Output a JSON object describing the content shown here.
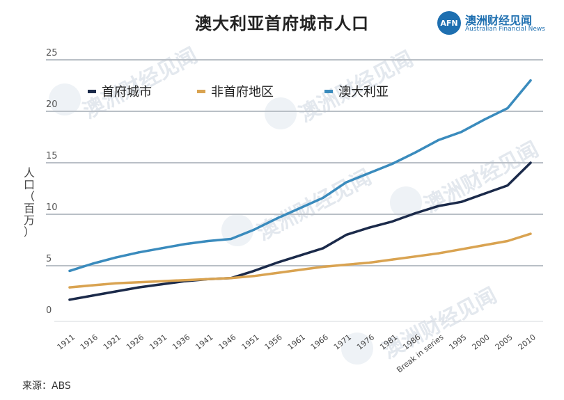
{
  "brand": {
    "logo_mark": "AFN",
    "name_cn": "澳洲财经见闻",
    "name_en": "Australian Financial News",
    "color": "#1e6fb0"
  },
  "source": "来源：ABS",
  "y_axis_label_chars": [
    "人",
    "口",
    "（",
    "百",
    "万",
    "）"
  ],
  "chart_data": {
    "type": "line",
    "title": "澳大利亚首府城市人口",
    "ylabel": "人口（百万）",
    "xlabel": "",
    "ylim": [
      0,
      25
    ],
    "yticks": [
      "0",
      "5",
      "10",
      "15",
      "20",
      "25"
    ],
    "categories": [
      "1911",
      "1916",
      "1921",
      "1926",
      "1931",
      "1936",
      "1941",
      "1946",
      "1951",
      "1956",
      "1961",
      "1966",
      "1971",
      "1976",
      "1981",
      "1986",
      "Break in series",
      "1995",
      "2000",
      "2005",
      "2010"
    ],
    "legend_position": "top-left",
    "series": [
      {
        "name": "首府城市",
        "color": "#1b2a4a",
        "values": [
          1.7,
          2.1,
          2.5,
          2.9,
          3.2,
          3.5,
          3.7,
          3.8,
          4.5,
          5.3,
          6.0,
          6.7,
          8.0,
          8.7,
          9.3,
          10.1,
          10.8,
          11.2,
          12.0,
          12.8,
          15.0
        ]
      },
      {
        "name": "非首府地区",
        "color": "#d9a351",
        "values": [
          2.9,
          3.1,
          3.3,
          3.4,
          3.5,
          3.6,
          3.7,
          3.8,
          4.0,
          4.3,
          4.6,
          4.9,
          5.1,
          5.3,
          5.6,
          5.9,
          6.2,
          6.6,
          7.0,
          7.4,
          8.1
        ]
      },
      {
        "name": "澳大利亚",
        "color": "#3a8bbd",
        "values": [
          4.5,
          5.2,
          5.8,
          6.3,
          6.7,
          7.1,
          7.4,
          7.6,
          8.5,
          9.6,
          10.6,
          11.6,
          13.1,
          14.0,
          14.9,
          16.0,
          17.2,
          18.0,
          19.2,
          20.3,
          23.0
        ]
      }
    ]
  }
}
